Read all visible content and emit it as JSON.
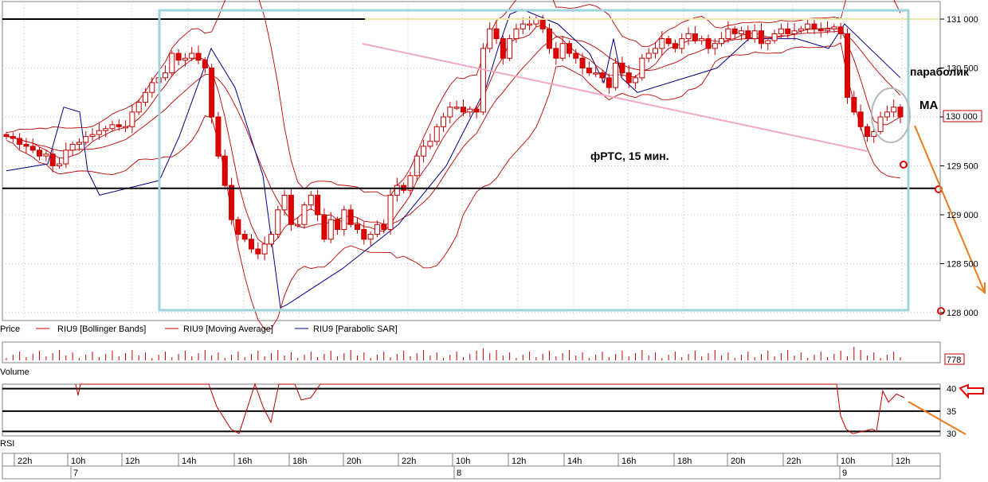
{
  "chart_data": {
    "type": "candlestick",
    "instrument": "RIU9",
    "timeframe_note": "фРТС,  15 мин.",
    "y_ticks": [
      "131 000",
      "130 500",
      "130 000",
      "129 500",
      "129 000",
      "128 500",
      "128 000"
    ],
    "y_tick_values": [
      131000,
      130500,
      130000,
      129500,
      129000,
      128500,
      128000
    ],
    "ylim": [
      127990,
      131150
    ],
    "last_price_label": "130 000",
    "legend": [
      {
        "label": "Price",
        "color": "#000000"
      },
      {
        "label": "RIU9 [Bollinger Bands]",
        "color": "#c00000"
      },
      {
        "label": "RIU9 [Moving Average]",
        "color": "#c00000"
      },
      {
        "label": "RIU9 [Parabolic SAR]",
        "color": "#00008b"
      }
    ],
    "annotations": {
      "parabolic": "параболик",
      "ma": "МА",
      "title": "фРТС,  15 мин."
    },
    "horizontal_levels": [
      131000,
      129270
    ],
    "circle_levels": [
      129500,
      128000
    ],
    "x_time_labels": [
      "22h",
      "10h",
      "12h",
      "14h",
      "16h",
      "18h",
      "20h",
      "22h",
      "10h",
      "12h",
      "14h",
      "16h",
      "18h",
      "20h",
      "22h",
      "10h",
      "12h"
    ],
    "x_day_labels": [
      "7",
      "8",
      "9"
    ],
    "volume": {
      "label": "Volume",
      "last_value": "778"
    },
    "rsi": {
      "label": "RSI",
      "ticks": [
        "40",
        "35",
        "30"
      ],
      "tick_values": [
        40,
        35,
        30
      ],
      "ylim": [
        29.5,
        41
      ]
    },
    "closes": [
      129800,
      129780,
      129720,
      129700,
      129660,
      129600,
      129620,
      129500,
      129520,
      129660,
      129720,
      129740,
      129800,
      129820,
      129860,
      129880,
      129920,
      129900,
      129900,
      130050,
      130150,
      130250,
      130350,
      130400,
      130450,
      130650,
      130580,
      130600,
      130650,
      130580,
      130500,
      130000,
      129600,
      129300,
      128950,
      128800,
      128750,
      128650,
      128600,
      128700,
      128800,
      129050,
      129200,
      128900,
      128900,
      129100,
      129200,
      129000,
      128750,
      128950,
      128850,
      129050,
      128900,
      128850,
      128750,
      128800,
      128900,
      128850,
      129200,
      129300,
      129250,
      129400,
      129600,
      129700,
      129750,
      129900,
      130000,
      130100,
      130100,
      130050,
      130080,
      130050,
      130700,
      130900,
      130800,
      130600,
      130800,
      130900,
      130950,
      130950,
      131000,
      130900,
      130700,
      130600,
      130750,
      130650,
      130600,
      130500,
      130450,
      130450,
      130400,
      130300,
      130550,
      130450,
      130350,
      130400,
      130600,
      130650,
      130700,
      130800,
      130750,
      130700,
      130800,
      130850,
      130780,
      130800,
      130700,
      130750,
      130800,
      130900,
      130850,
      130880,
      130800,
      130880,
      130750,
      130780,
      130850,
      130900,
      130850,
      130880,
      130900,
      130950,
      130900,
      130880,
      130900,
      130920,
      130850,
      130200,
      130050,
      129900,
      129800,
      129850,
      130000,
      130050,
      130100,
      130000
    ]
  }
}
